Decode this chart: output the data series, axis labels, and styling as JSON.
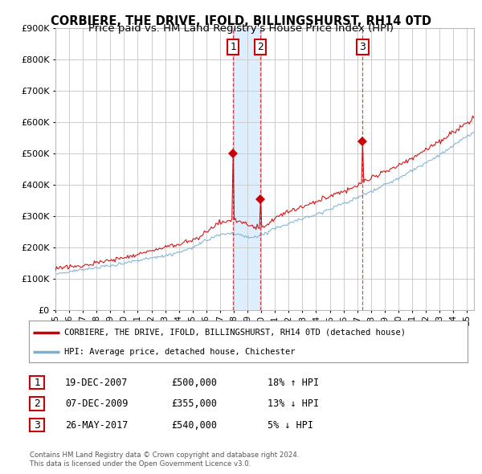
{
  "title": "CORBIERE, THE DRIVE, IFOLD, BILLINGSHURST, RH14 0TD",
  "subtitle": "Price paid vs. HM Land Registry's House Price Index (HPI)",
  "ylim": [
    0,
    900000
  ],
  "xlim_start": 1995.0,
  "xlim_end": 2025.5,
  "sale_points": [
    {
      "label": "1",
      "date": 2007.96,
      "price": 500000
    },
    {
      "label": "2",
      "date": 2009.93,
      "price": 355000
    },
    {
      "label": "3",
      "date": 2017.4,
      "price": 540000
    }
  ],
  "legend_entries": [
    {
      "color": "#cc0000",
      "label": "CORBIERE, THE DRIVE, IFOLD, BILLINGSHURST, RH14 0TD (detached house)"
    },
    {
      "color": "#7ab0d4",
      "label": "HPI: Average price, detached house, Chichester"
    }
  ],
  "table_rows": [
    {
      "num": "1",
      "date": "19-DEC-2007",
      "price": "£500,000",
      "hpi": "18% ↑ HPI"
    },
    {
      "num": "2",
      "date": "07-DEC-2009",
      "price": "£355,000",
      "hpi": "13% ↓ HPI"
    },
    {
      "num": "3",
      "date": "26-MAY-2017",
      "price": "£540,000",
      "hpi": "5% ↓ HPI"
    }
  ],
  "footnote1": "Contains HM Land Registry data © Crown copyright and database right 2024.",
  "footnote2": "This data is licensed under the Open Government Licence v3.0.",
  "background_color": "#ffffff",
  "grid_color": "#cccccc",
  "vline_color": "#cc0000",
  "shade_color": "#ddeeff",
  "title_fontsize": 10.5,
  "subtitle_fontsize": 9.5
}
